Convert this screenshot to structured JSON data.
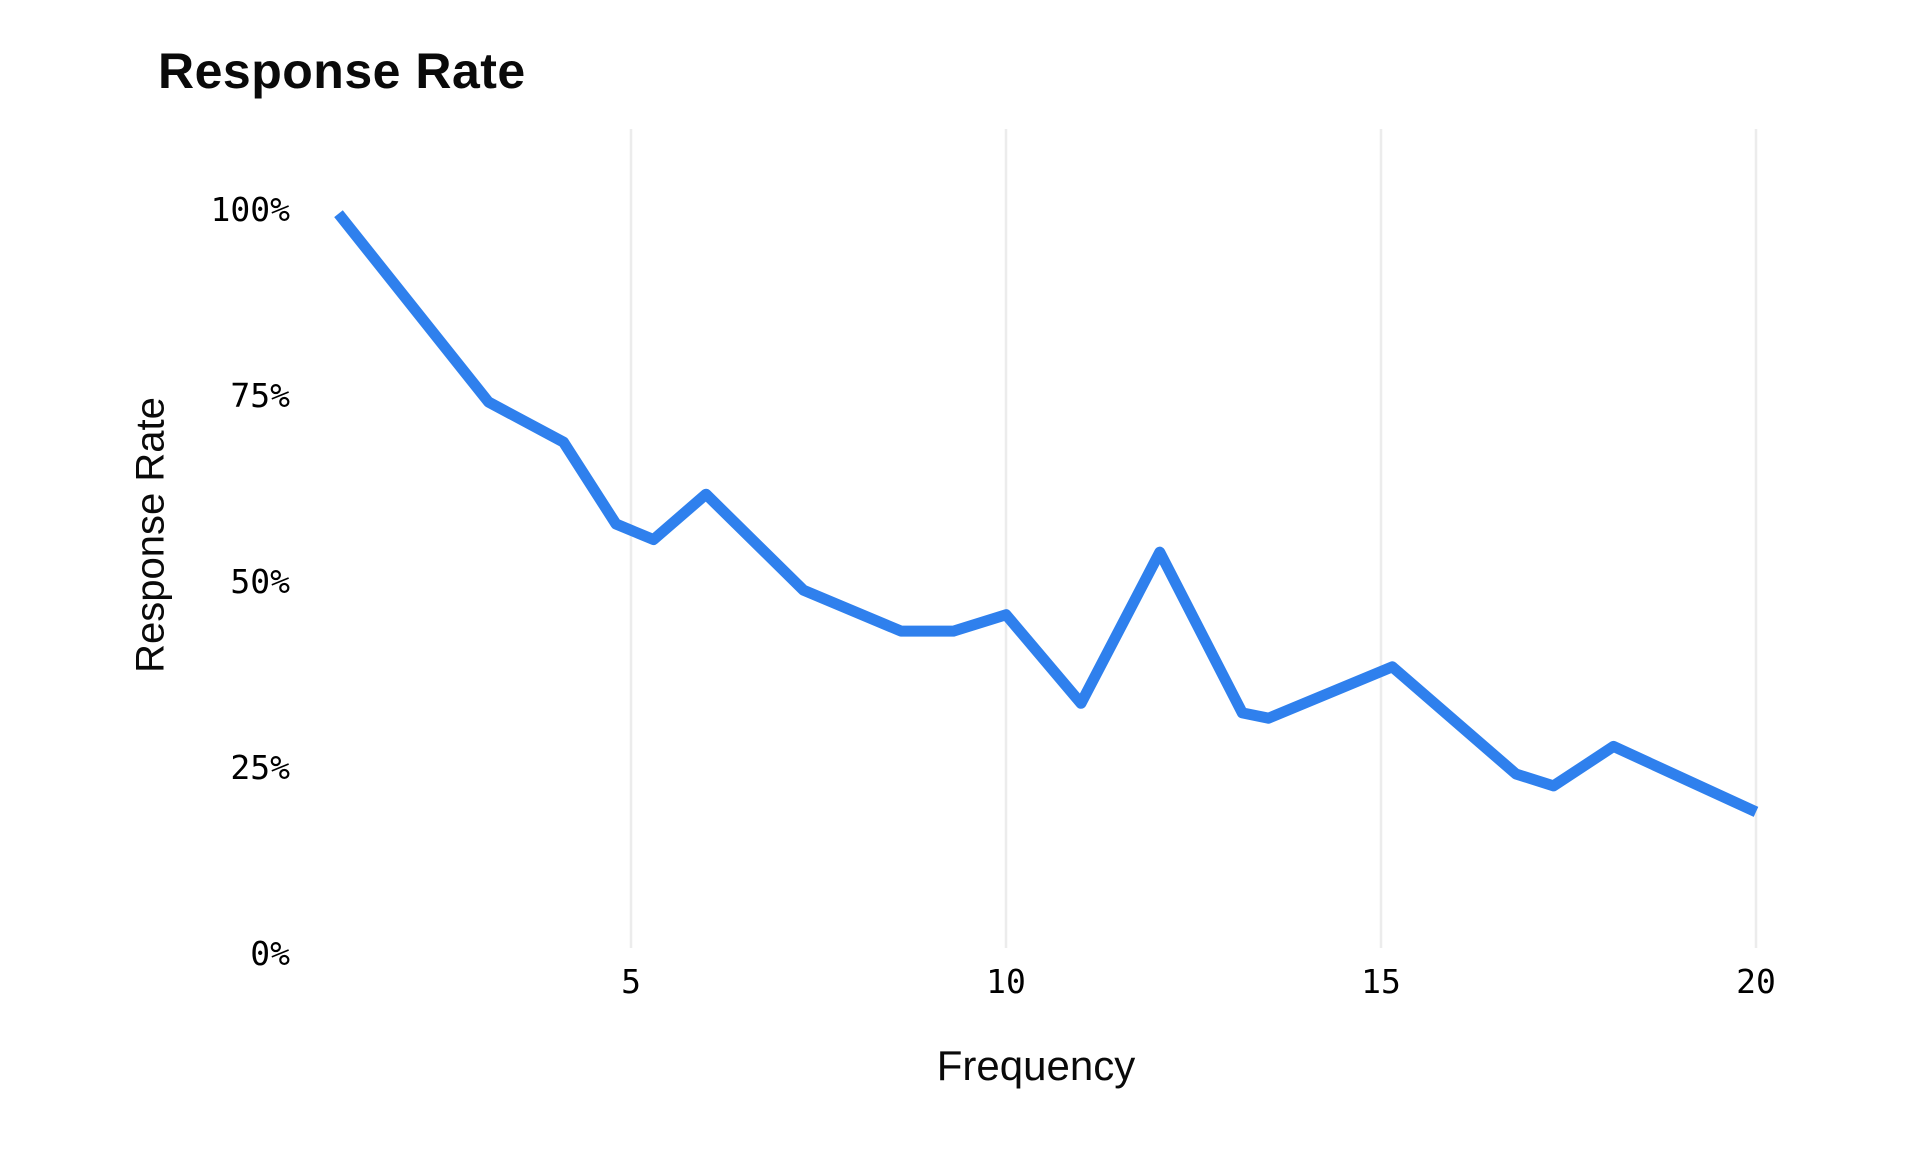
{
  "chart": {
    "title": "Response Rate",
    "x_axis": {
      "label": "Frequency",
      "tick_labels": [
        "5",
        "10",
        "15",
        "20"
      ]
    },
    "y_axis": {
      "label": "Response Rate",
      "tick_labels": [
        "100%",
        "75%",
        "50%",
        "25%",
        "0%"
      ]
    },
    "colors": {
      "line": "#2f80ed",
      "grid": "#ececec",
      "text": "#0a0a0a"
    }
  },
  "chart_data": {
    "type": "line",
    "title": "Response Rate",
    "xlabel": "Frequency",
    "ylabel": "Response Rate",
    "x": [
      1.1,
      3.1,
      4.1,
      4.8,
      5.3,
      6.0,
      7.3,
      8.6,
      9.3,
      10.0,
      11.0,
      12.05,
      13.15,
      13.5,
      15.15,
      16.8,
      17.3,
      18.1,
      20.0
    ],
    "y": [
      99.5,
      74.2,
      68.8,
      57.8,
      55.7,
      61.8,
      48.9,
      43.4,
      43.4,
      45.6,
      33.7,
      54.0,
      32.4,
      31.7,
      38.6,
      24.2,
      22.6,
      27.9,
      19.1
    ],
    "xlim": [
      1,
      20
    ],
    "ylim": [
      0,
      100
    ],
    "x_ticks": [
      5,
      10,
      15,
      20
    ],
    "y_ticks": [
      100,
      75,
      50,
      25,
      0
    ],
    "y_tick_suffix": "%",
    "grid": "vertical-only",
    "legend": "none",
    "line_color": "#2f80ed",
    "grid_color": "#ececec",
    "line_width": 11
  }
}
